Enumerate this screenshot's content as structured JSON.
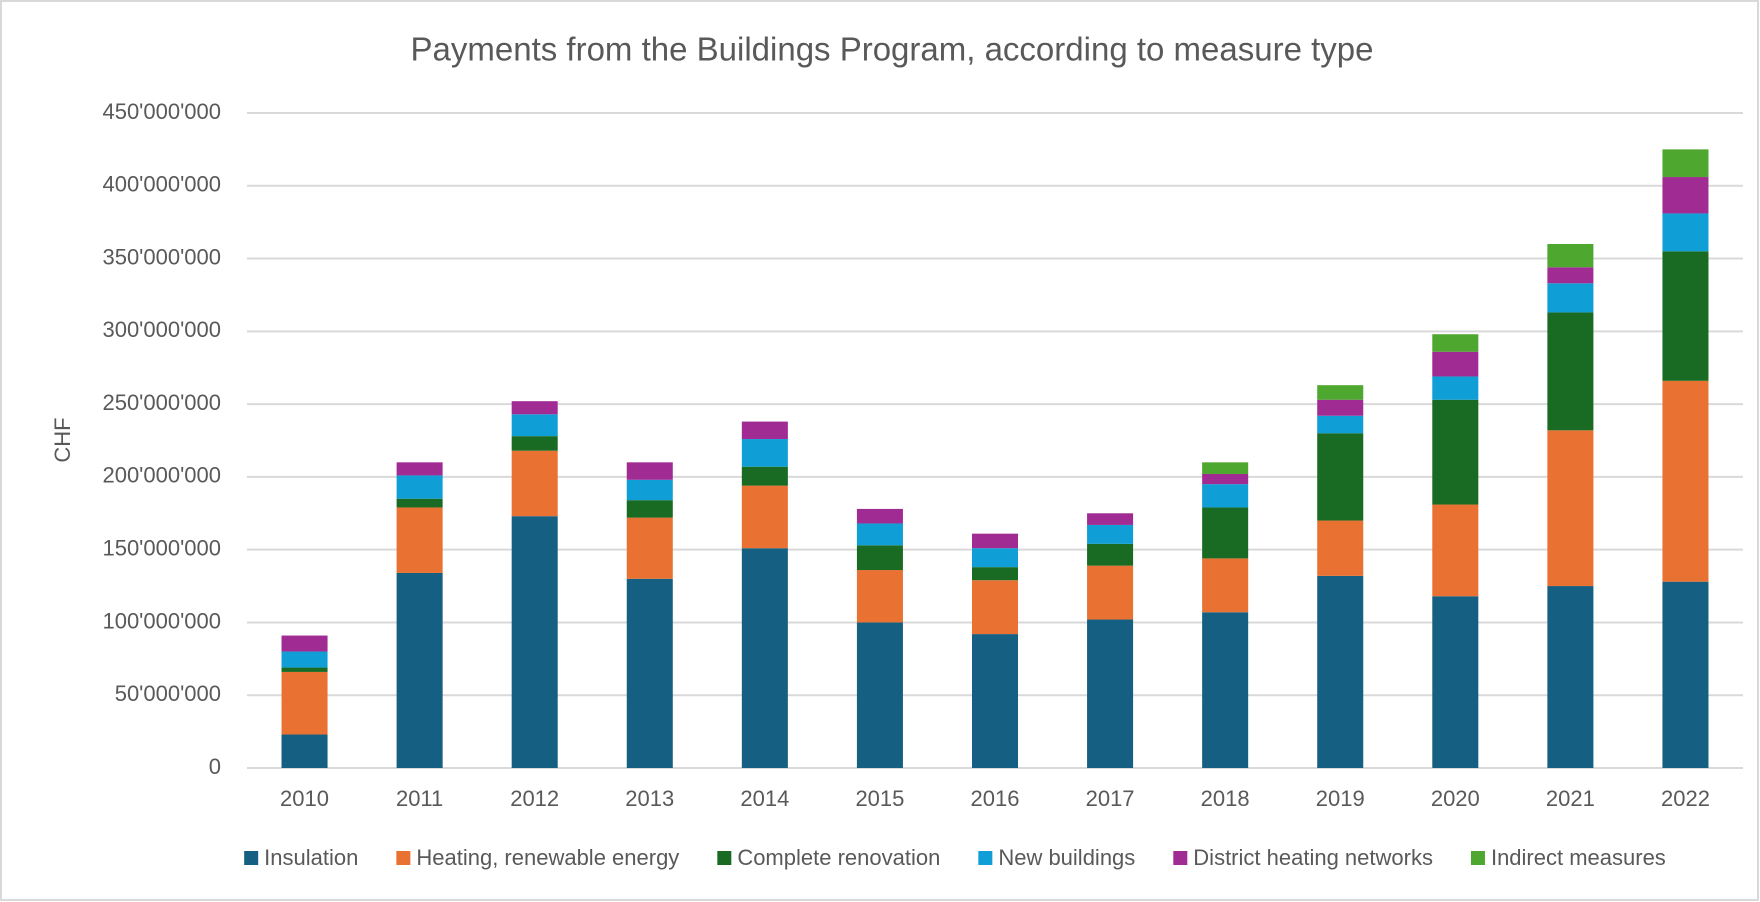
{
  "chart_data": {
    "type": "stacked_bar",
    "title": "Payments from the Buildings Program, according to measure type",
    "y_label": "CHF",
    "categories": [
      "2010",
      "2011",
      "2012",
      "2013",
      "2014",
      "2015",
      "2016",
      "2017",
      "2018",
      "2019",
      "2020",
      "2021",
      "2022"
    ],
    "series": [
      {
        "name": "Insulation",
        "color": "#156082",
        "values": [
          23000000,
          134000000,
          173000000,
          130000000,
          151000000,
          100000000,
          92000000,
          102000000,
          107000000,
          132000000,
          118000000,
          125000000,
          128000000
        ]
      },
      {
        "name": "Heating, renewable energy",
        "color": "#e97132",
        "values": [
          43000000,
          45000000,
          45000000,
          42000000,
          43000000,
          36000000,
          37000000,
          37000000,
          37000000,
          38000000,
          63000000,
          107000000,
          138000000
        ]
      },
      {
        "name": "Complete renovation",
        "color": "#196b24",
        "values": [
          3000000,
          6000000,
          10000000,
          12000000,
          13000000,
          17000000,
          9000000,
          15000000,
          35000000,
          60000000,
          72000000,
          81000000,
          89000000
        ]
      },
      {
        "name": "New buildings",
        "color": "#0f9ed5",
        "values": [
          11000000,
          16000000,
          15000000,
          14000000,
          19000000,
          15000000,
          13000000,
          13000000,
          16000000,
          12000000,
          16000000,
          20000000,
          26000000
        ]
      },
      {
        "name": "District heating networks",
        "color": "#a02b93",
        "values": [
          11000000,
          9000000,
          9000000,
          12000000,
          12000000,
          10000000,
          10000000,
          8000000,
          7000000,
          11000000,
          17000000,
          11000000,
          25000000
        ]
      },
      {
        "name": "Indirect measures",
        "color": "#4ea72e",
        "values": [
          0,
          0,
          0,
          0,
          0,
          0,
          0,
          0,
          8000000,
          10000000,
          12000000,
          16000000,
          19000000
        ]
      }
    ],
    "ylim": [
      0,
      450000000
    ],
    "yticks": [
      0,
      {
        "value": 50000000,
        "label": "50'000'000"
      },
      {
        "value": 100000000,
        "label": "100'000'000"
      },
      {
        "value": 150000000,
        "label": "150'000'000"
      },
      {
        "value": 200000000,
        "label": "200'000'000"
      },
      {
        "value": 250000000,
        "label": "250'000'000"
      },
      {
        "value": 300000000,
        "label": "300'000'000"
      },
      {
        "value": 350000000,
        "label": "350'000'000"
      },
      {
        "value": 400000000,
        "label": "400'000'000"
      },
      {
        "value": 450000000,
        "label": "450'000'000"
      }
    ],
    "grid": true,
    "legend": "bottom"
  }
}
